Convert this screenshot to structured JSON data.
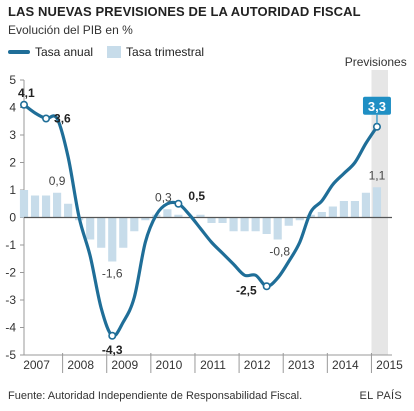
{
  "header": {
    "title": "LAS NUEVAS PREVISIONES DE LA AUTORIDAD FISCAL",
    "subtitle": "Evolución del PIB en %"
  },
  "legend": {
    "line_label": "Tasa anual",
    "bar_label": "Tasa trimestral"
  },
  "forecast_label": "Previsiones",
  "footer": {
    "source": "Fuente: Autoridad Independiente de Responsabilidad Fiscal.",
    "brand": "EL PAÍS"
  },
  "colors": {
    "line": "#1f6e98",
    "bars": "#c7dcea",
    "forecast_band": "#e6e6e6",
    "zero_line": "#555555",
    "grid": "#dddddd",
    "callout_bg": "#1f8fc4"
  },
  "chart_data": {
    "type": "line",
    "title": "LAS NUEVAS PREVISIONES DE LA AUTORIDAD FISCAL",
    "subtitle": "Evolución del PIB en %",
    "x_categories": [
      "2007",
      "2008",
      "2009",
      "2010",
      "2011",
      "2012",
      "2013",
      "2014",
      "2015"
    ],
    "ylim": [
      -5,
      5
    ],
    "y_ticks": [
      5,
      4,
      3,
      2,
      1,
      0,
      -1,
      -2,
      -3,
      -4,
      -5
    ],
    "grid": true,
    "legend_position": "top-left",
    "forecast_region": "2015",
    "series": [
      {
        "name": "Tasa anual",
        "kind": "line",
        "x": [
          2007.0,
          2007.25,
          2007.5,
          2007.75,
          2008.0,
          2008.25,
          2008.5,
          2008.75,
          2009.0,
          2009.25,
          2009.5,
          2009.75,
          2010.0,
          2010.25,
          2010.5,
          2010.75,
          2011.0,
          2011.25,
          2011.5,
          2011.75,
          2012.0,
          2012.25,
          2012.5,
          2012.75,
          2013.0,
          2013.25,
          2013.5,
          2013.75,
          2014.0,
          2014.25,
          2014.5,
          2014.75,
          2015.0
        ],
        "values": [
          4.1,
          3.8,
          3.6,
          3.6,
          2.2,
          0.0,
          -1.4,
          -3.3,
          -4.3,
          -3.8,
          -2.9,
          -0.9,
          0.1,
          0.5,
          0.5,
          0.1,
          -0.4,
          -0.9,
          -1.3,
          -1.7,
          -2.1,
          -2.1,
          -2.5,
          -2.2,
          -1.6,
          -0.9,
          0.2,
          0.6,
          1.2,
          1.6,
          2.0,
          2.7,
          3.3
        ]
      },
      {
        "name": "Tasa trimestral",
        "kind": "bar",
        "x": [
          2007.0,
          2007.25,
          2007.5,
          2007.75,
          2008.0,
          2008.25,
          2008.5,
          2008.75,
          2009.0,
          2009.25,
          2009.5,
          2009.75,
          2010.0,
          2010.25,
          2010.5,
          2010.75,
          2011.0,
          2011.25,
          2011.5,
          2011.75,
          2012.0,
          2012.25,
          2012.5,
          2012.75,
          2013.0,
          2013.25,
          2013.5,
          2013.75,
          2014.0,
          2014.25,
          2014.5,
          2014.75,
          2015.0
        ],
        "values": [
          1.0,
          0.8,
          0.8,
          0.9,
          0.5,
          -0.1,
          -0.8,
          -1.1,
          -1.6,
          -1.1,
          -0.5,
          -0.1,
          0.1,
          0.3,
          0.1,
          0.0,
          0.1,
          -0.2,
          -0.2,
          -0.5,
          -0.5,
          -0.5,
          -0.6,
          -0.8,
          -0.3,
          -0.1,
          0.1,
          0.2,
          0.4,
          0.6,
          0.6,
          0.9,
          1.1
        ]
      }
    ],
    "annotations": [
      {
        "label": "4,1",
        "x": 2007.0,
        "y": 4.1,
        "series": "Tasa anual",
        "style": "bold"
      },
      {
        "label": "3,6",
        "x": 2007.5,
        "y": 3.6,
        "series": "Tasa anual",
        "style": "bold"
      },
      {
        "label": "0,9",
        "x": 2007.75,
        "y": 0.9,
        "series": "Tasa trimestral",
        "style": "normal"
      },
      {
        "label": "-1,6",
        "x": 2009.0,
        "y": -1.6,
        "series": "Tasa trimestral",
        "style": "normal"
      },
      {
        "label": "-4,3",
        "x": 2009.0,
        "y": -4.3,
        "series": "Tasa anual",
        "style": "bold"
      },
      {
        "label": "0,3",
        "x": 2010.25,
        "y": 0.3,
        "series": "Tasa trimestral",
        "style": "normal"
      },
      {
        "label": "0,5",
        "x": 2010.5,
        "y": 0.5,
        "series": "Tasa anual",
        "style": "bold"
      },
      {
        "label": "-0,8",
        "x": 2012.75,
        "y": -0.8,
        "series": "Tasa trimestral",
        "style": "normal"
      },
      {
        "label": "-2,5",
        "x": 2012.5,
        "y": -2.5,
        "series": "Tasa anual",
        "style": "bold"
      },
      {
        "label": "1,1",
        "x": 2015.0,
        "y": 1.1,
        "series": "Tasa trimestral",
        "style": "normal"
      },
      {
        "label": "3,3",
        "x": 2015.0,
        "y": 3.3,
        "series": "Tasa anual",
        "style": "callout"
      }
    ]
  }
}
